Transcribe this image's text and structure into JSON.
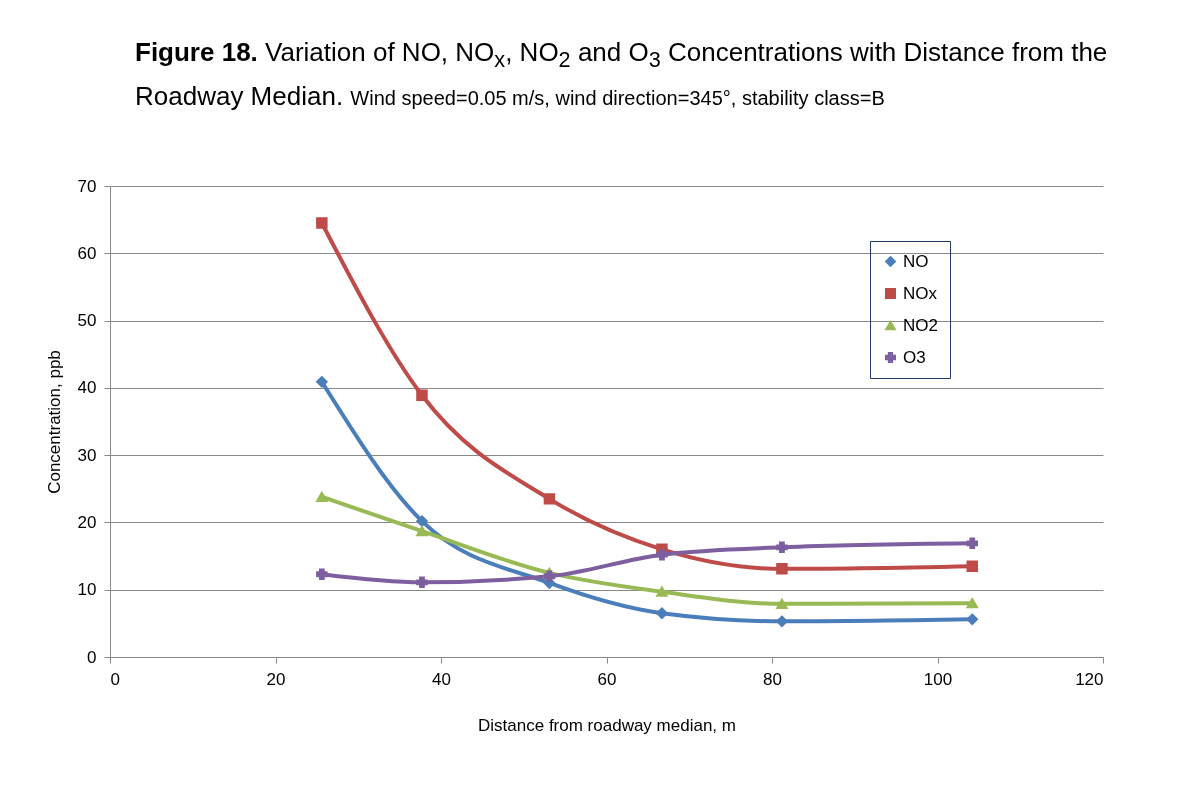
{
  "chart_data": {
    "type": "line",
    "title": "Figure 18. Variation of NO, NO$_{x}$, NO$_{2}$ and O$_{3}$ Concentrations with Distance from the Roadway Median.",
    "subtitle": "Wind speed=0.05 m/s, wind direction=345°, stability class=B",
    "xlabel": "Distance from roadway median, m",
    "ylabel": "Concentration, ppb",
    "x": [
      25.6,
      37.7,
      53.1,
      66.7,
      81.2,
      104.2
    ],
    "series": [
      {
        "name": "NO",
        "color": "#4a7ebb",
        "marker": "diamond",
        "values": [
          40.9,
          20.2,
          11.0,
          6.5,
          5.3,
          5.6
        ]
      },
      {
        "name": "NOx",
        "color": "#be4b48",
        "marker": "square",
        "values": [
          64.5,
          38.9,
          23.5,
          16.0,
          13.1,
          13.5
        ]
      },
      {
        "name": "NO2",
        "color": "#98b954",
        "marker": "triangle",
        "values": [
          23.8,
          18.7,
          12.5,
          9.7,
          7.9,
          8.0
        ]
      },
      {
        "name": "O3",
        "color": "#7d5fa0",
        "marker": "cross",
        "values": [
          12.3,
          11.1,
          12.0,
          15.2,
          16.3,
          16.9
        ]
      }
    ],
    "xlim": [
      0,
      120
    ],
    "xticks": [
      0,
      20,
      40,
      60,
      80,
      100,
      120
    ],
    "ylim": [
      0,
      70
    ],
    "yticks": [
      0,
      10,
      20,
      30,
      40,
      50,
      60,
      70
    ],
    "grid": "y",
    "legend": "top right"
  }
}
